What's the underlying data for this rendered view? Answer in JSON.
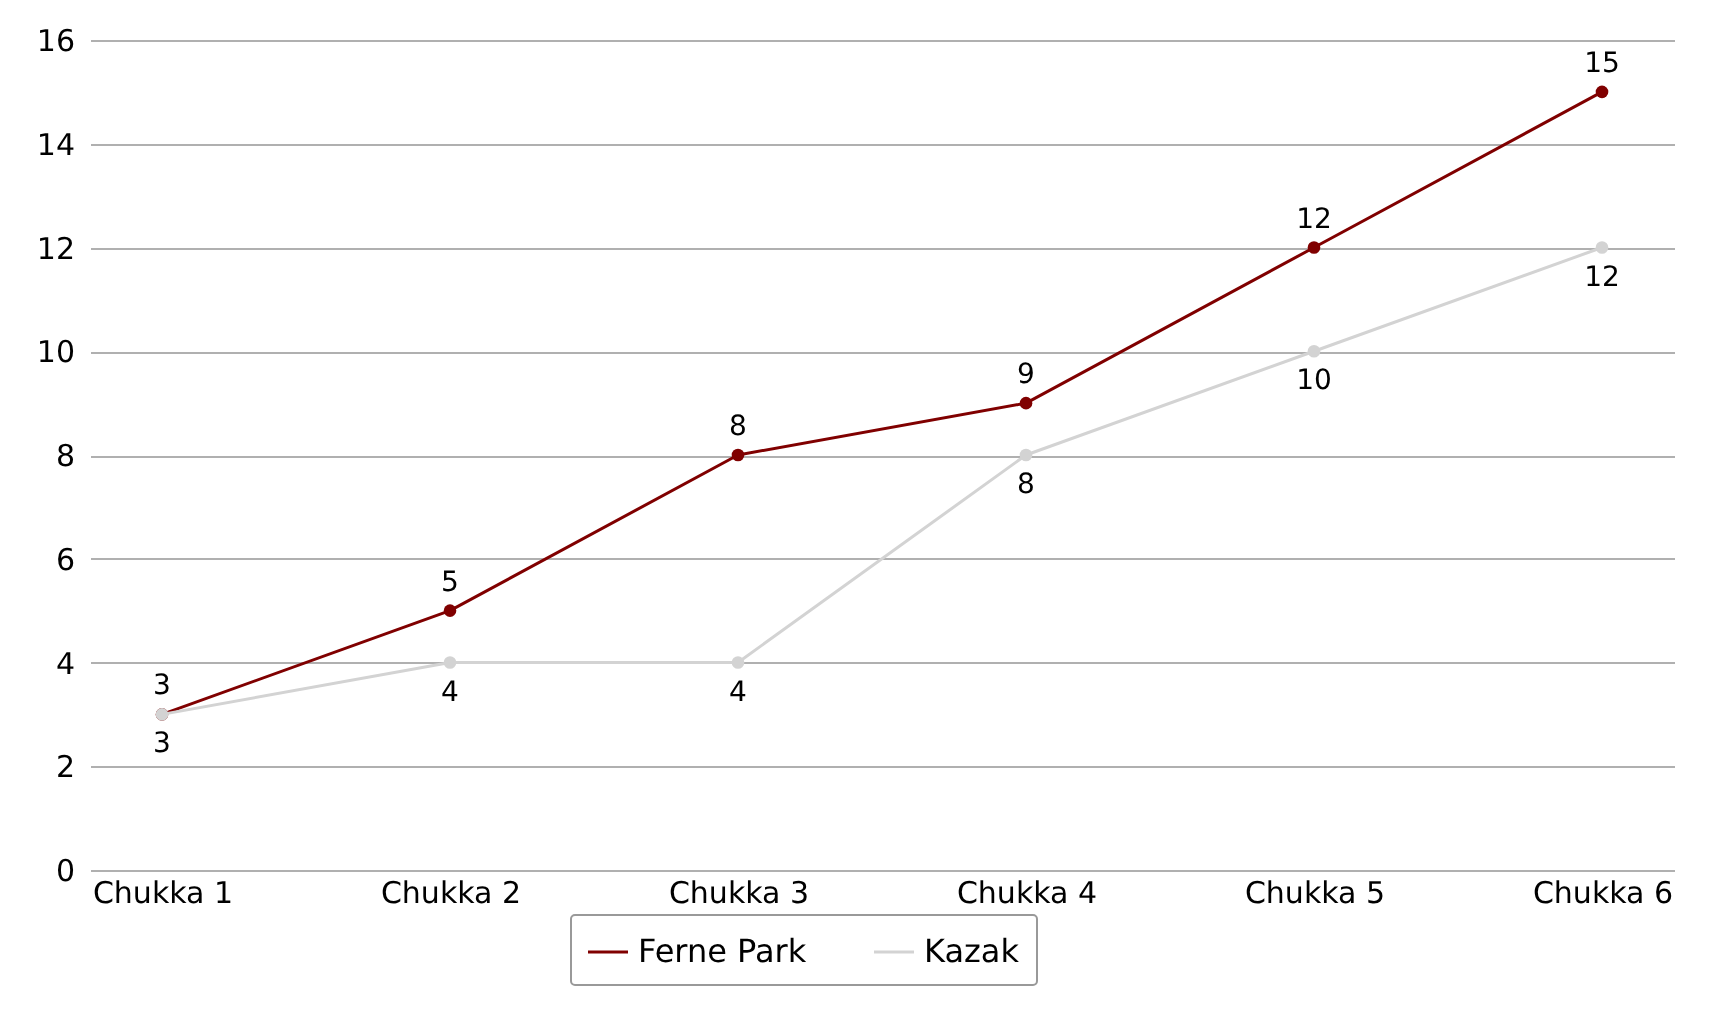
{
  "chart_data": {
    "type": "line",
    "categories": [
      "Chukka 1",
      "Chukka 2",
      "Chukka 3",
      "Chukka 4",
      "Chukka 5",
      "Chukka 6"
    ],
    "series": [
      {
        "name": "Ferne Park",
        "color": "#800000",
        "values": [
          3,
          5,
          8,
          9,
          12,
          15
        ]
      },
      {
        "name": "Kazak",
        "color": "#d3d3d3",
        "values": [
          3,
          4,
          4,
          8,
          10,
          12
        ]
      }
    ],
    "ylim": [
      0,
      16
    ],
    "yticks": [
      0,
      2,
      4,
      6,
      8,
      10,
      12,
      14,
      16
    ],
    "grid": "y",
    "legend": "bottom",
    "marker": "circle",
    "line_style": "solid",
    "data_labels": true
  }
}
